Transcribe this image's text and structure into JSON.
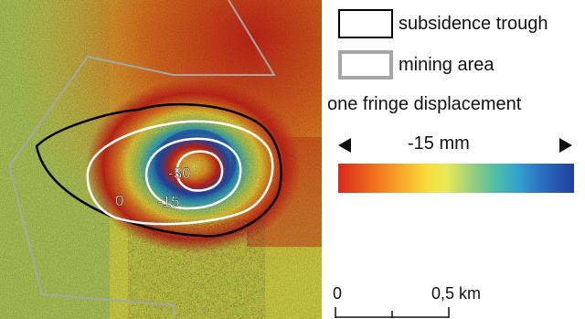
{
  "legend": {
    "subsidence_label": "subsidence trough",
    "mining_label": "mining area",
    "fringe_title": "one fringe displacement",
    "fringe_value": "-15 mm"
  },
  "contours": {
    "label_0": "0",
    "label_15": "-15",
    "label_30": "-30"
  },
  "scale": {
    "zero": "0",
    "half": "0,5 km"
  },
  "colors": {
    "subsidence_outline": "#000000",
    "mining_outline": "#a6a6a6",
    "contour": "#ffffff"
  },
  "icons": [
    "left-arrow-icon",
    "right-arrow-icon"
  ]
}
